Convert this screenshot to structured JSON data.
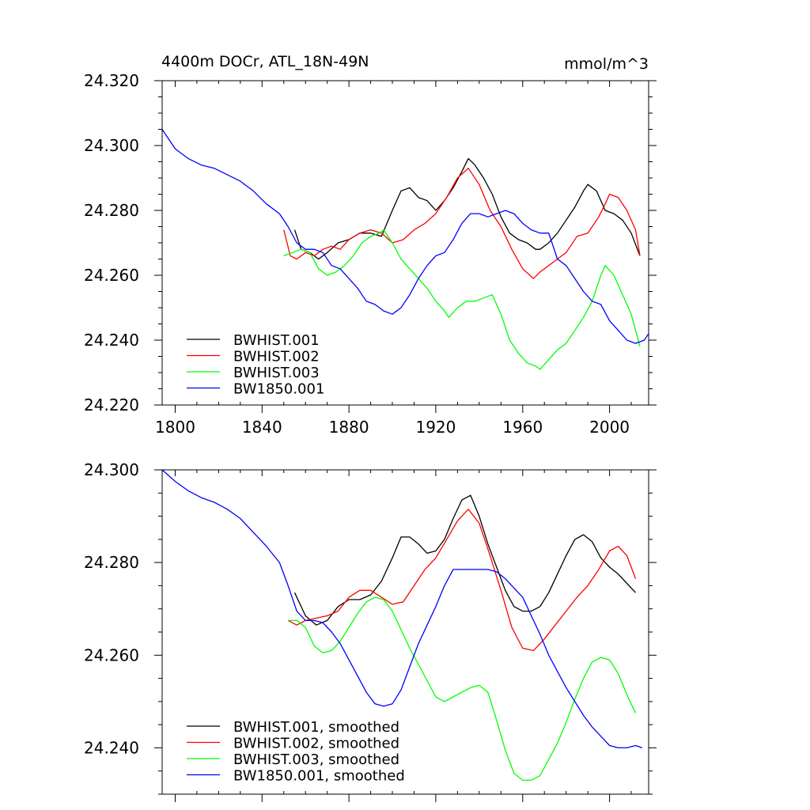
{
  "chart_data": [
    {
      "type": "line",
      "title": "4400m DOCr, ATL_18N-49N",
      "units": "mmol/m^3",
      "xlabel": "",
      "ylabel": "",
      "xlim": [
        1794,
        2018
      ],
      "ylim": [
        24.22,
        24.32
      ],
      "xticks": [
        1800,
        1840,
        1880,
        1920,
        1960,
        2000
      ],
      "xtick_labels": [
        "1800",
        "1840",
        "1880",
        "1920",
        "1960",
        "2000"
      ],
      "yticks": [
        24.22,
        24.24,
        24.26,
        24.28,
        24.3,
        24.32
      ],
      "ytick_labels": [
        "24.220",
        "24.240",
        "24.260",
        "24.280",
        "24.300",
        "24.320"
      ],
      "legend_position": "bottom-left",
      "series": [
        {
          "name": "BWHIST.001",
          "color": "#000000",
          "x": [
            1855,
            1858,
            1862,
            1866,
            1870,
            1875,
            1880,
            1885,
            1890,
            1895,
            1900,
            1904,
            1908,
            1912,
            1916,
            1920,
            1924,
            1928,
            1932,
            1935,
            1938,
            1942,
            1946,
            1950,
            1954,
            1958,
            1962,
            1966,
            1968,
            1972,
            1976,
            1980,
            1984,
            1988,
            1990,
            1994,
            1998,
            2002,
            2006,
            2010,
            2014
          ],
          "y": [
            24.274,
            24.268,
            24.267,
            24.265,
            24.267,
            24.27,
            24.271,
            24.273,
            24.273,
            24.272,
            24.28,
            24.286,
            24.287,
            24.284,
            24.283,
            24.28,
            24.283,
            24.287,
            24.292,
            24.296,
            24.294,
            24.29,
            24.285,
            24.278,
            24.273,
            24.271,
            24.27,
            24.268,
            24.268,
            24.27,
            24.273,
            24.277,
            24.281,
            24.286,
            24.288,
            24.286,
            24.28,
            24.279,
            24.277,
            24.273,
            24.266
          ]
        },
        {
          "name": "BWHIST.002",
          "color": "#ff0000",
          "x": [
            1850,
            1853,
            1856,
            1860,
            1864,
            1868,
            1872,
            1876,
            1880,
            1885,
            1890,
            1895,
            1900,
            1905,
            1910,
            1915,
            1920,
            1925,
            1930,
            1935,
            1940,
            1945,
            1950,
            1955,
            1960,
            1965,
            1968,
            1972,
            1976,
            1980,
            1985,
            1990,
            1995,
            1998,
            2000,
            2004,
            2008,
            2012,
            2014
          ],
          "y": [
            24.274,
            24.266,
            24.265,
            24.267,
            24.266,
            24.268,
            24.269,
            24.268,
            24.271,
            24.273,
            24.274,
            24.273,
            24.27,
            24.271,
            24.274,
            24.276,
            24.279,
            24.284,
            24.29,
            24.293,
            24.288,
            24.28,
            24.275,
            24.268,
            24.262,
            24.259,
            24.261,
            24.263,
            24.265,
            24.267,
            24.272,
            24.273,
            24.278,
            24.282,
            24.285,
            24.284,
            24.28,
            24.274,
            24.266
          ]
        },
        {
          "name": "BWHIST.003",
          "color": "#00ff00",
          "x": [
            1850,
            1854,
            1858,
            1862,
            1866,
            1870,
            1874,
            1878,
            1882,
            1886,
            1890,
            1894,
            1896,
            1900,
            1904,
            1908,
            1912,
            1916,
            1920,
            1924,
            1926,
            1930,
            1934,
            1938,
            1942,
            1946,
            1950,
            1954,
            1958,
            1962,
            1966,
            1968,
            1972,
            1976,
            1980,
            1984,
            1988,
            1992,
            1996,
            1998,
            2002,
            2006,
            2010,
            2014
          ],
          "y": [
            24.266,
            24.267,
            24.268,
            24.267,
            24.262,
            24.26,
            24.261,
            24.263,
            24.266,
            24.27,
            24.272,
            24.273,
            24.274,
            24.27,
            24.265,
            24.262,
            24.259,
            24.256,
            24.252,
            24.249,
            24.247,
            24.25,
            24.252,
            24.252,
            24.253,
            24.254,
            24.248,
            24.24,
            24.236,
            24.233,
            24.232,
            24.231,
            24.234,
            24.237,
            24.239,
            24.243,
            24.247,
            24.252,
            24.26,
            24.263,
            24.26,
            24.254,
            24.248,
            24.238
          ]
        },
        {
          "name": "BW1850.001",
          "color": "#0000ff",
          "x": [
            1794,
            1800,
            1806,
            1812,
            1818,
            1824,
            1830,
            1836,
            1842,
            1848,
            1852,
            1856,
            1860,
            1864,
            1868,
            1872,
            1876,
            1880,
            1884,
            1888,
            1892,
            1896,
            1900,
            1904,
            1908,
            1912,
            1916,
            1920,
            1924,
            1928,
            1932,
            1936,
            1940,
            1944,
            1948,
            1952,
            1956,
            1960,
            1964,
            1968,
            1972,
            1976,
            1980,
            1984,
            1988,
            1992,
            1996,
            2000,
            2004,
            2008,
            2012,
            2016,
            2018
          ],
          "y": [
            24.305,
            24.299,
            24.296,
            24.294,
            24.293,
            24.291,
            24.289,
            24.286,
            24.282,
            24.279,
            24.275,
            24.27,
            24.268,
            24.268,
            24.267,
            24.263,
            24.262,
            24.259,
            24.256,
            24.252,
            24.251,
            24.249,
            24.248,
            24.25,
            24.254,
            24.259,
            24.263,
            24.266,
            24.267,
            24.271,
            24.276,
            24.279,
            24.279,
            24.278,
            24.279,
            24.28,
            24.279,
            24.276,
            24.274,
            24.273,
            24.273,
            24.265,
            24.263,
            24.259,
            24.255,
            24.252,
            24.251,
            24.246,
            24.243,
            24.24,
            24.239,
            24.24,
            24.242
          ]
        }
      ]
    },
    {
      "type": "line",
      "title": "",
      "xlabel": "",
      "ylabel": "",
      "xlim": [
        1794,
        2018
      ],
      "ylim": [
        24.23,
        24.3
      ],
      "xticks": [
        1800,
        1840,
        1880,
        1920,
        1960,
        2000
      ],
      "yticks": [
        24.24,
        24.26,
        24.28,
        24.3
      ],
      "ytick_labels": [
        "24.240",
        "24.260",
        "24.280",
        "24.300"
      ],
      "legend_position": "bottom-left",
      "series": [
        {
          "name": "BWHIST.001, smoothed",
          "color": "#000000",
          "x": [
            1855,
            1860,
            1865,
            1870,
            1875,
            1880,
            1885,
            1890,
            1895,
            1900,
            1904,
            1908,
            1912,
            1916,
            1920,
            1924,
            1928,
            1932,
            1936,
            1940,
            1944,
            1948,
            1952,
            1956,
            1960,
            1964,
            1968,
            1972,
            1976,
            1980,
            1984,
            1988,
            1992,
            1996,
            2000,
            2004,
            2008,
            2012
          ],
          "y": [
            24.2735,
            24.2685,
            24.2665,
            24.2675,
            24.2705,
            24.272,
            24.272,
            24.273,
            24.276,
            24.281,
            24.2855,
            24.2855,
            24.284,
            24.282,
            24.2825,
            24.285,
            24.2895,
            24.2935,
            24.2945,
            24.29,
            24.284,
            24.279,
            24.274,
            24.2705,
            24.2695,
            24.2695,
            24.2705,
            24.2735,
            24.2775,
            24.2815,
            24.285,
            24.286,
            24.2845,
            24.281,
            24.279,
            24.2775,
            24.2755,
            24.2735
          ]
        },
        {
          "name": "BWHIST.002, smoothed",
          "color": "#ff0000",
          "x": [
            1852,
            1856,
            1860,
            1865,
            1870,
            1875,
            1880,
            1885,
            1890,
            1895,
            1900,
            1905,
            1910,
            1915,
            1920,
            1925,
            1930,
            1935,
            1940,
            1945,
            1950,
            1955,
            1960,
            1965,
            1970,
            1975,
            1980,
            1985,
            1990,
            1995,
            2000,
            2004,
            2008,
            2012
          ],
          "y": [
            24.2675,
            24.2665,
            24.2675,
            24.268,
            24.2685,
            24.2695,
            24.2725,
            24.274,
            24.274,
            24.2725,
            24.271,
            24.2715,
            24.275,
            24.2785,
            24.281,
            24.285,
            24.289,
            24.2915,
            24.2885,
            24.2815,
            24.274,
            24.266,
            24.2615,
            24.261,
            24.2635,
            24.2665,
            24.2695,
            24.2725,
            24.275,
            24.2785,
            24.2825,
            24.2835,
            24.2815,
            24.2765
          ]
        },
        {
          "name": "BWHIST.003, smoothed",
          "color": "#00ff00",
          "x": [
            1852,
            1856,
            1860,
            1864,
            1868,
            1872,
            1876,
            1880,
            1884,
            1888,
            1892,
            1896,
            1900,
            1904,
            1908,
            1912,
            1916,
            1920,
            1924,
            1928,
            1932,
            1936,
            1940,
            1944,
            1948,
            1952,
            1956,
            1960,
            1964,
            1968,
            1972,
            1976,
            1980,
            1984,
            1988,
            1992,
            1996,
            2000,
            2004,
            2008,
            2012
          ],
          "y": [
            24.2675,
            24.2675,
            24.266,
            24.262,
            24.2605,
            24.261,
            24.263,
            24.266,
            24.269,
            24.2715,
            24.2725,
            24.272,
            24.2695,
            24.2655,
            24.2615,
            24.258,
            24.2545,
            24.251,
            24.25,
            24.251,
            24.252,
            24.253,
            24.2535,
            24.252,
            24.246,
            24.2395,
            24.2345,
            24.233,
            24.233,
            24.234,
            24.2375,
            24.241,
            24.2455,
            24.2505,
            24.255,
            24.2585,
            24.2595,
            24.259,
            24.256,
            24.2515,
            24.2475
          ]
        },
        {
          "name": "BW1850.001, smoothed",
          "color": "#0000ff",
          "x": [
            1794,
            1800,
            1806,
            1812,
            1818,
            1824,
            1830,
            1836,
            1842,
            1848,
            1852,
            1856,
            1860,
            1864,
            1868,
            1872,
            1876,
            1880,
            1884,
            1888,
            1892,
            1896,
            1900,
            1904,
            1908,
            1912,
            1916,
            1920,
            1924,
            1928,
            1932,
            1936,
            1940,
            1944,
            1948,
            1952,
            1956,
            1960,
            1964,
            1968,
            1972,
            1976,
            1980,
            1984,
            1988,
            1992,
            1996,
            2000,
            2004,
            2008,
            2012,
            2015
          ],
          "y": [
            24.3,
            24.2975,
            24.2955,
            24.294,
            24.293,
            24.2915,
            24.2895,
            24.2865,
            24.2835,
            24.28,
            24.275,
            24.2695,
            24.2675,
            24.2675,
            24.267,
            24.265,
            24.2625,
            24.259,
            24.2555,
            24.252,
            24.2495,
            24.249,
            24.2495,
            24.2525,
            24.2575,
            24.2625,
            24.2665,
            24.2705,
            24.275,
            24.2785,
            24.2785,
            24.2785,
            24.2785,
            24.2785,
            24.278,
            24.2765,
            24.2745,
            24.2725,
            24.2685,
            24.2645,
            24.26,
            24.2565,
            24.253,
            24.25,
            24.247,
            24.2445,
            24.2425,
            24.2405,
            24.24,
            24.24,
            24.2405,
            24.24
          ]
        }
      ]
    }
  ]
}
